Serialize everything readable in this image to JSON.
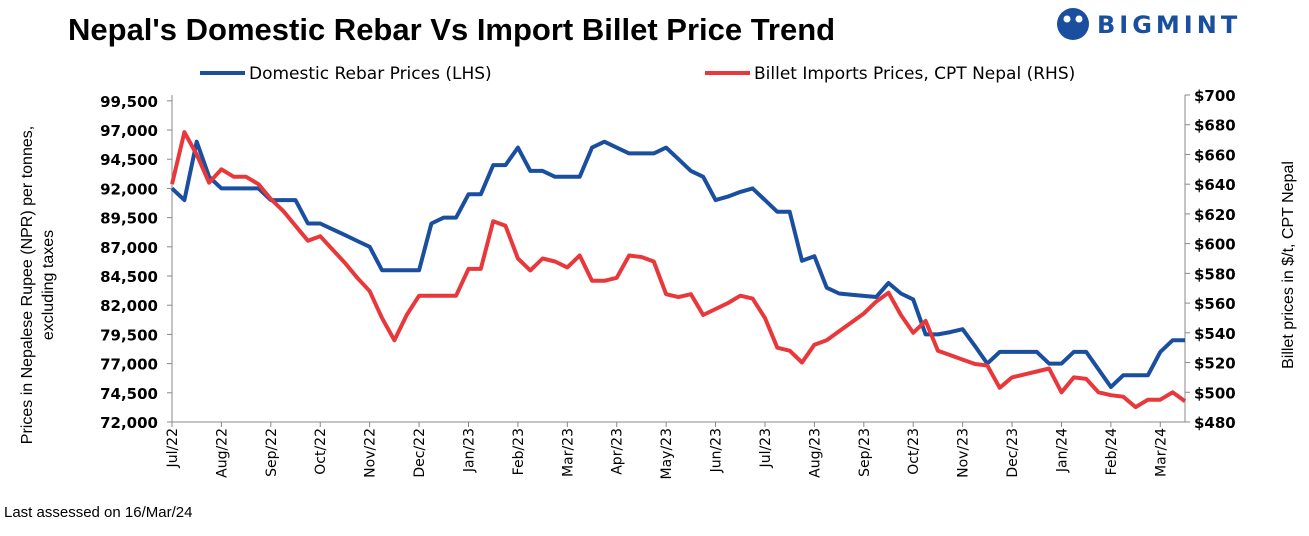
{
  "logo": "BIGMINT",
  "footnote": "Last assessed on 16/Mar/24",
  "chart_data": {
    "type": "line",
    "title": "Nepal's Domestic Rebar Vs Import Billet Price Trend",
    "y_label": [
      "Prices in Nepalese Rupee (NPR) per tonnes,",
      "excluding taxes"
    ],
    "y2_label": "Billet prices in $/t, CPT Nepal",
    "categories": [
      "Jul/22",
      null,
      null,
      null,
      "Aug/22",
      null,
      null,
      null,
      "Sep/22",
      null,
      null,
      null,
      "Oct/22",
      null,
      null,
      null,
      "Nov/22",
      null,
      null,
      null,
      "Dec/22",
      null,
      null,
      null,
      "Jan/23",
      null,
      null,
      null,
      "Feb/23",
      null,
      null,
      null,
      "Mar/23",
      null,
      null,
      null,
      "Apr/23",
      null,
      null,
      null,
      "May/23",
      null,
      null,
      null,
      "Jun/23",
      null,
      null,
      null,
      "Jul/23",
      null,
      null,
      null,
      "Aug/23",
      null,
      null,
      null,
      "Sep/23",
      null,
      null,
      null,
      "Oct/23",
      null,
      null,
      null,
      "Nov/23",
      null,
      null,
      null,
      "Dec/23",
      null,
      null,
      null,
      "Jan/24",
      null,
      null,
      null,
      "Feb/24",
      null,
      null,
      null,
      "Mar/24",
      null,
      null
    ],
    "series": [
      {
        "name": "Domestic Rebar Prices (LHS)",
        "color": "#1a4fa0",
        "axis": "y",
        "values": [
          92000,
          91000,
          96000,
          93000,
          92000,
          92000,
          92000,
          92000,
          91000,
          91000,
          91000,
          89000,
          89000,
          88500,
          88000,
          87500,
          87000,
          85000,
          85000,
          85000,
          85000,
          89000,
          89500,
          89500,
          91500,
          91500,
          94000,
          94000,
          95500,
          93500,
          93500,
          93000,
          93000,
          93000,
          95500,
          96000,
          95500,
          95000,
          95000,
          95000,
          95500,
          94500,
          93500,
          93000,
          91000,
          91300,
          91700,
          92000,
          91000,
          90000,
          90000,
          85800,
          86200,
          83500,
          83000,
          82900,
          82800,
          82700,
          83900,
          83000,
          82500,
          79500,
          79500,
          79700,
          79950,
          78500,
          77000,
          78000,
          78000,
          78000,
          78000,
          77000,
          77000,
          78000,
          78000,
          76500,
          75000,
          76000,
          76000,
          76000,
          78000,
          79000,
          79000
        ]
      },
      {
        "name": "Billet Imports Prices, CPT Nepal (RHS)",
        "color": "#e8383b",
        "axis": "y2",
        "values": [
          640,
          675,
          660,
          641,
          650,
          645,
          645,
          640,
          630,
          622,
          612,
          602,
          605,
          596,
          587,
          577,
          568,
          550,
          535,
          552,
          565,
          565,
          565,
          565,
          583,
          583,
          615,
          612,
          590,
          582,
          590,
          588,
          584,
          592,
          575,
          575,
          577,
          592,
          591,
          588,
          566,
          564,
          566,
          552,
          556,
          560,
          565,
          563,
          550,
          530,
          528,
          520,
          532,
          535,
          541,
          547,
          553,
          561,
          567,
          552,
          540,
          548,
          528,
          525,
          522,
          519,
          518,
          503,
          510,
          512,
          514,
          516,
          500,
          510,
          509,
          500,
          498,
          497,
          490,
          495,
          495,
          500,
          494
        ]
      }
    ],
    "ylim": [
      72000,
      100000
    ],
    "yticks": [
      {
        "value": 72000,
        "label": "72,000"
      },
      {
        "value": 74500,
        "label": "74,500"
      },
      {
        "value": 77000,
        "label": "77,000"
      },
      {
        "value": 79500,
        "label": "79,500"
      },
      {
        "value": 82000,
        "label": "82,000"
      },
      {
        "value": 84500,
        "label": "84,500"
      },
      {
        "value": 87000,
        "label": "87,000"
      },
      {
        "value": 89500,
        "label": "89,500"
      },
      {
        "value": 92000,
        "label": "92,000"
      },
      {
        "value": 94500,
        "label": "94,500"
      },
      {
        "value": 97000,
        "label": "97,000"
      },
      {
        "value": 99500,
        "label": "99,500"
      }
    ],
    "y2lim": [
      480,
      700
    ],
    "y2ticks": [
      {
        "value": 480,
        "label": "$480"
      },
      {
        "value": 500,
        "label": "$500"
      },
      {
        "value": 520,
        "label": "$520"
      },
      {
        "value": 540,
        "label": "$540"
      },
      {
        "value": 560,
        "label": "$560"
      },
      {
        "value": 580,
        "label": "$580"
      },
      {
        "value": 600,
        "label": "$600"
      },
      {
        "value": 620,
        "label": "$620"
      },
      {
        "value": 640,
        "label": "$640"
      },
      {
        "value": 660,
        "label": "$660"
      },
      {
        "value": 680,
        "label": "$680"
      },
      {
        "value": 700,
        "label": "$700"
      }
    ]
  }
}
